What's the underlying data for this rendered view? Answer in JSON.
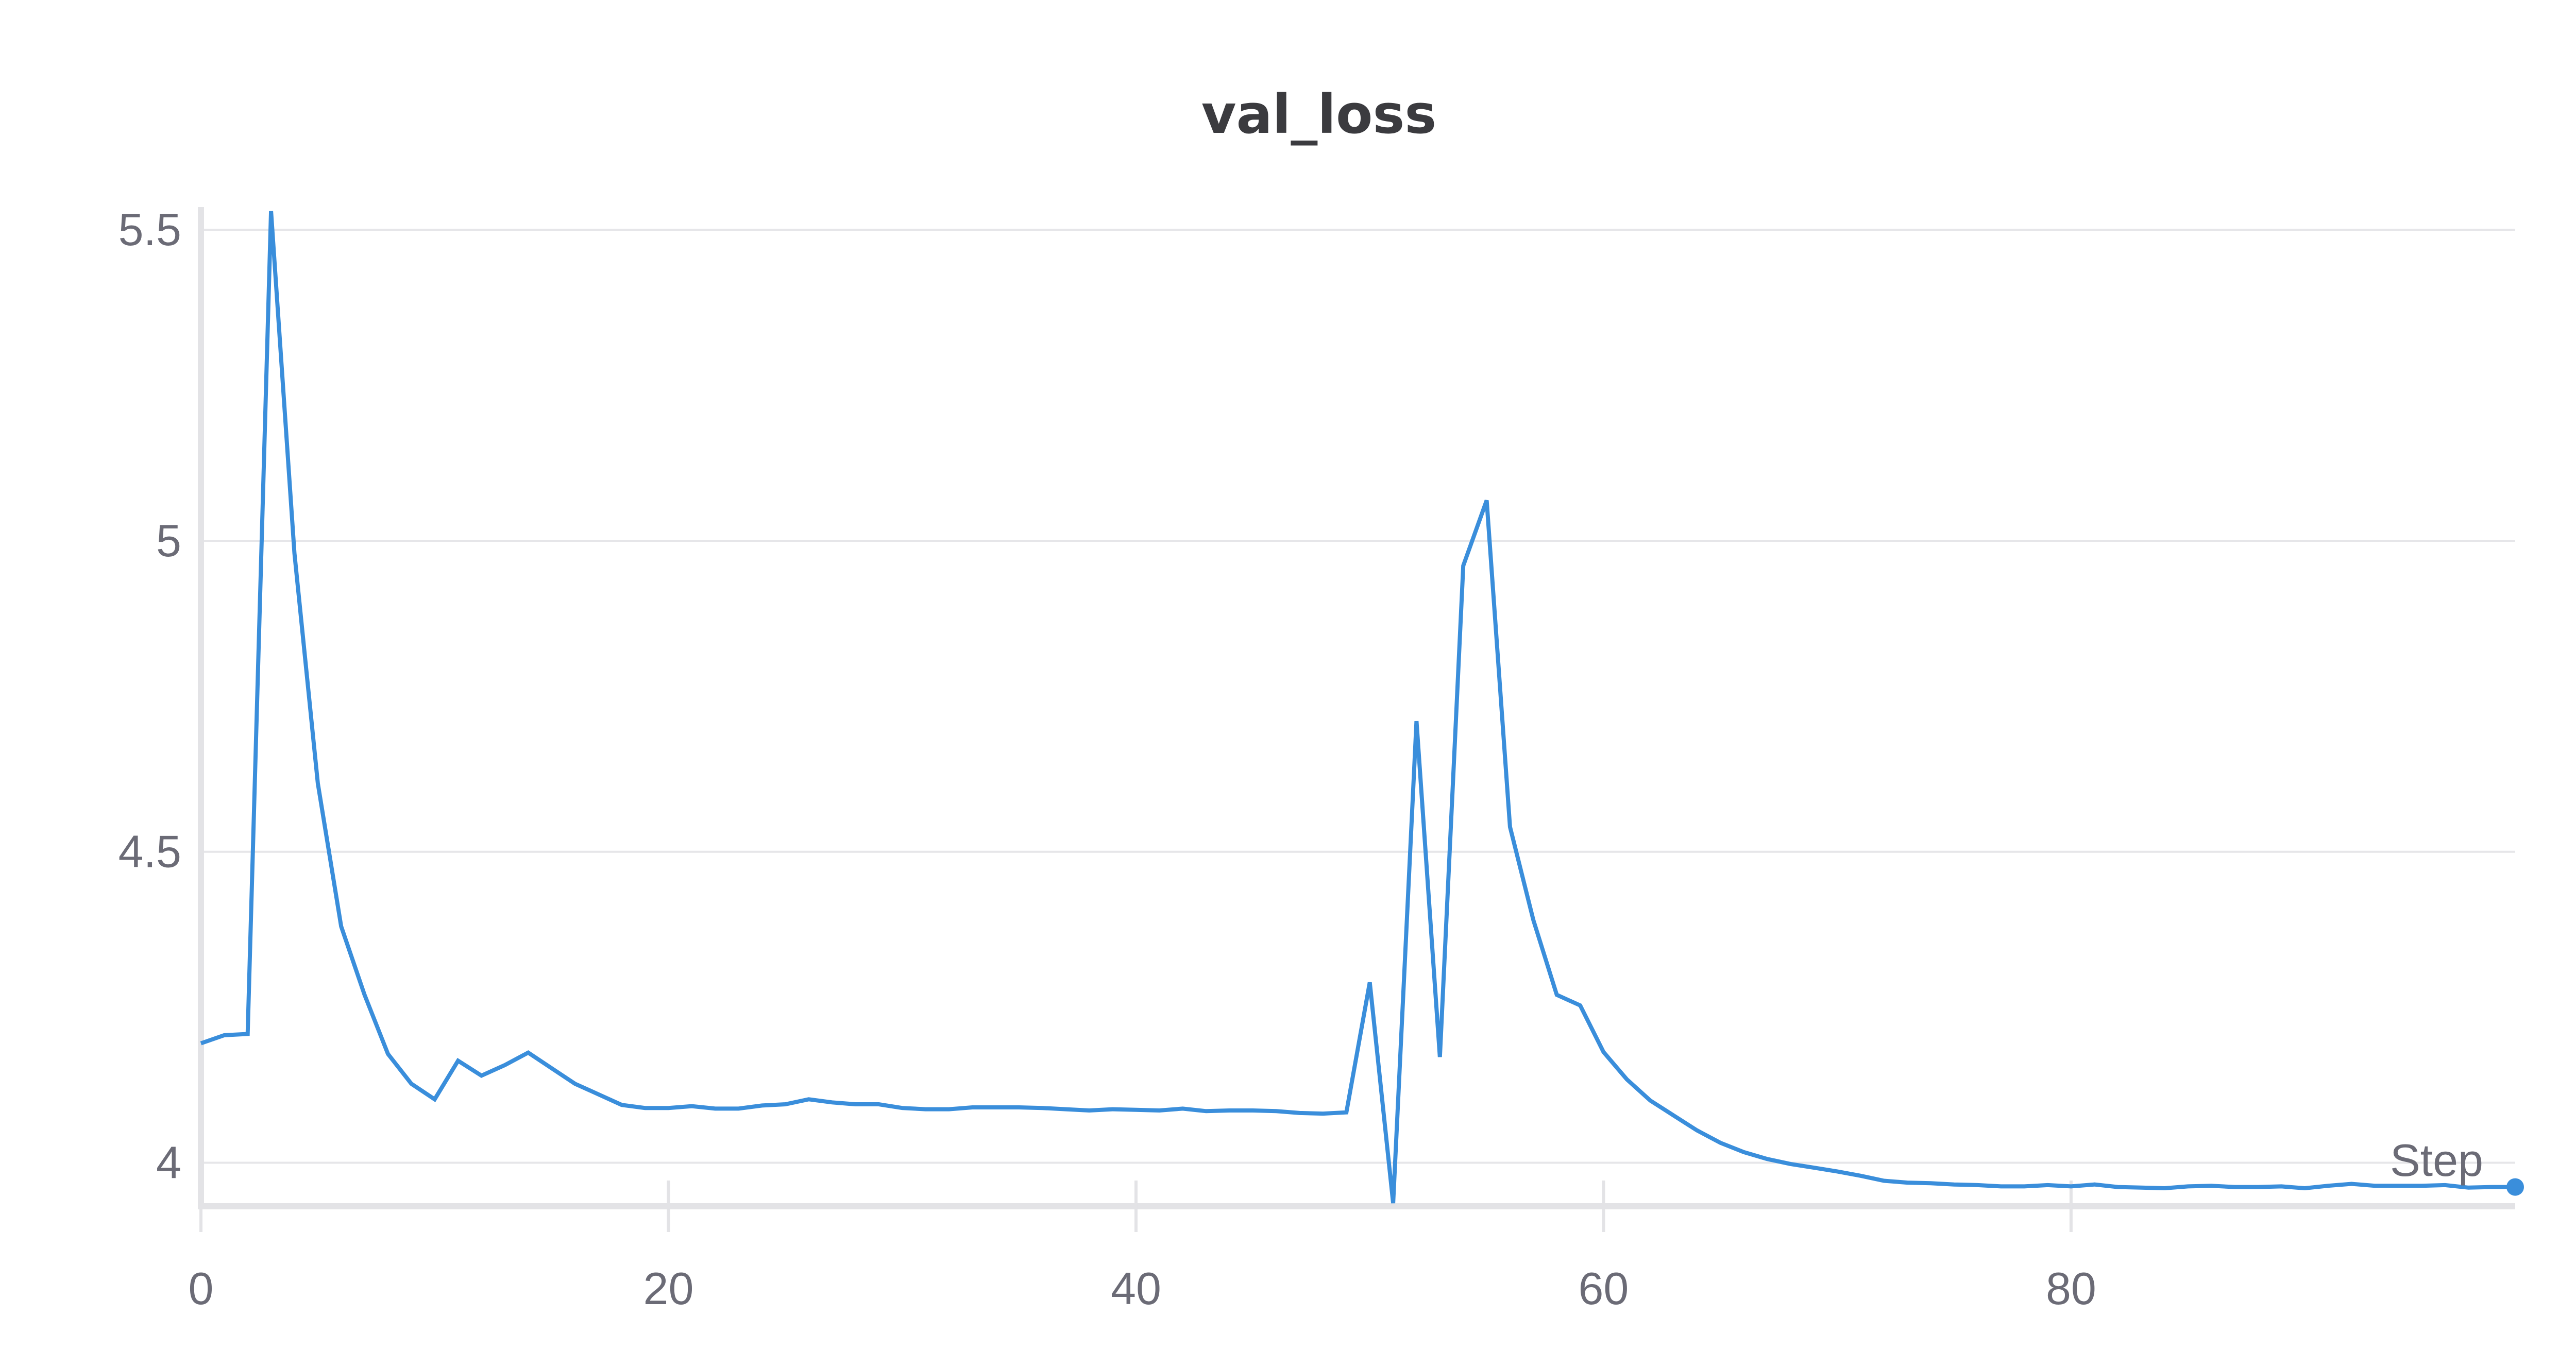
{
  "chart_data": {
    "type": "line",
    "title": "val_loss",
    "xlabel": "Step",
    "ylabel": "",
    "xlim": [
      0,
      99
    ],
    "ylim": [
      3.93,
      5.53
    ],
    "x_ticks": [
      0,
      20,
      40,
      60,
      80
    ],
    "y_ticks": [
      4,
      4.5,
      5,
      5.5
    ],
    "x_tick_labels": [
      "0",
      "20",
      "40",
      "60",
      "80"
    ],
    "y_tick_labels": [
      "4",
      "4.5",
      "5",
      "5.5"
    ],
    "grid": "horizontal",
    "colors": {
      "line": "#3a8edb",
      "grid": "#e6e6e9",
      "axis": "#e3e3e6",
      "text": "#6b6b76",
      "title": "#3b3b3f"
    },
    "series": [
      {
        "x": [
          0,
          1,
          2,
          3,
          4,
          5,
          6,
          7,
          8,
          9,
          10,
          11,
          12,
          13,
          14,
          15,
          16,
          17,
          18,
          19,
          20,
          21,
          22,
          23,
          24,
          25,
          26,
          27,
          28,
          29,
          30,
          31,
          32,
          33,
          34,
          35,
          36,
          37,
          38,
          39,
          40,
          41,
          42,
          43,
          44,
          45,
          46,
          47,
          48,
          49,
          50,
          51,
          52,
          53,
          54,
          55,
          56,
          57,
          58,
          59,
          60,
          61,
          62,
          63,
          64,
          65,
          66,
          67,
          68,
          69,
          70,
          71,
          72,
          73,
          74,
          75,
          76,
          77,
          78,
          79,
          80,
          81,
          82,
          83,
          84,
          85,
          86,
          87,
          88,
          89,
          90,
          91,
          92,
          93,
          94,
          95,
          96,
          97,
          98,
          99
        ],
        "values": [
          4.192,
          4.205,
          4.207,
          5.53,
          4.98,
          4.61,
          4.38,
          4.27,
          4.175,
          4.127,
          4.102,
          4.164,
          4.14,
          4.157,
          4.177,
          4.152,
          4.127,
          4.11,
          4.093,
          4.088,
          4.088,
          4.091,
          4.087,
          4.087,
          4.092,
          4.094,
          4.102,
          4.097,
          4.094,
          4.094,
          4.088,
          4.086,
          4.086,
          4.089,
          4.089,
          4.089,
          4.088,
          4.086,
          4.084,
          4.086,
          4.085,
          4.084,
          4.087,
          4.083,
          4.084,
          4.084,
          4.083,
          4.08,
          4.079,
          4.081,
          4.29,
          3.935,
          4.71,
          4.17,
          4.96,
          5.065,
          4.54,
          4.39,
          4.27,
          4.253,
          4.178,
          4.134,
          4.1,
          4.076,
          4.052,
          4.032,
          4.017,
          4.006,
          3.998,
          3.992,
          3.986,
          3.979,
          3.971,
          3.968,
          3.967,
          3.965,
          3.964,
          3.962,
          3.962,
          3.964,
          3.962,
          3.965,
          3.961,
          3.96,
          3.959,
          3.962,
          3.963,
          3.961,
          3.961,
          3.962,
          3.959,
          3.963,
          3.966,
          3.963,
          3.963,
          3.963,
          3.964,
          3.96,
          3.961,
          3.961
        ]
      }
    ]
  }
}
